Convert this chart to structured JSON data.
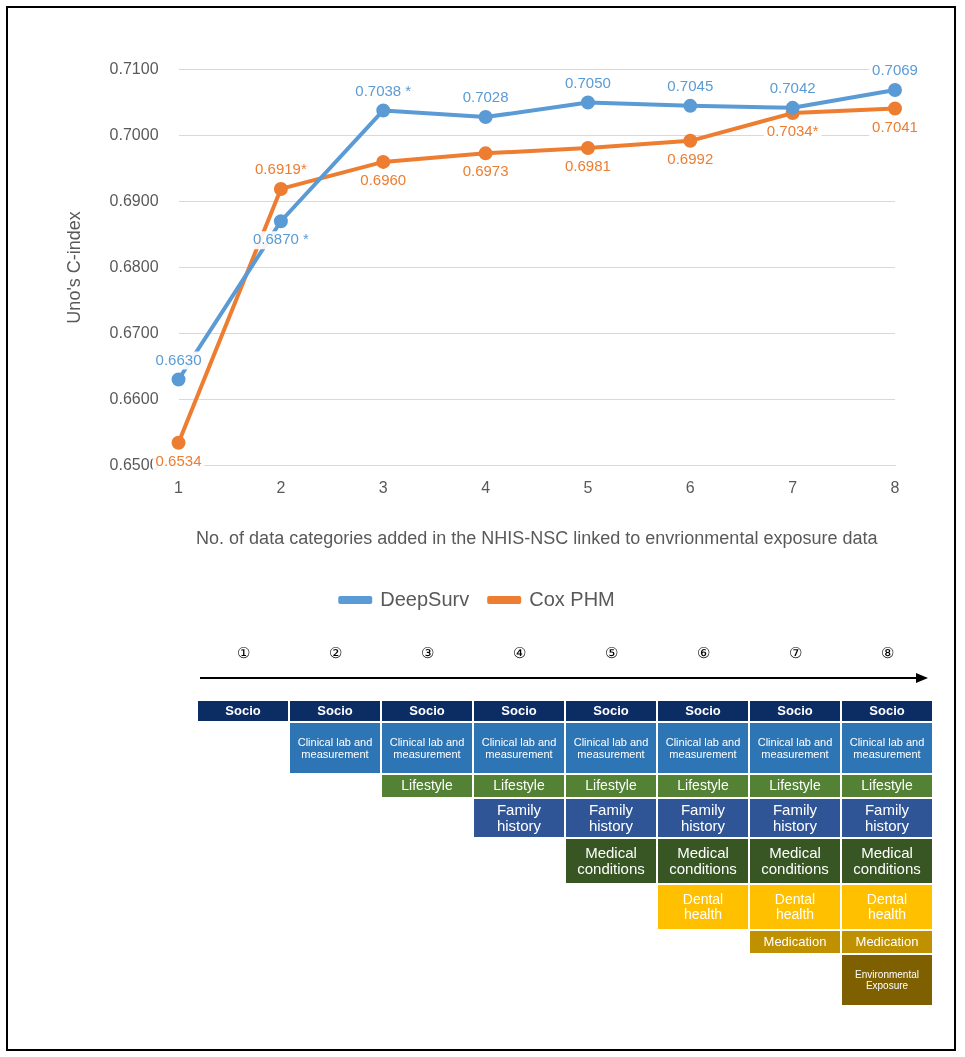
{
  "chart_data": [
    {
      "type": "line",
      "ylabel": "Uno's C-index",
      "xlabel": "No. of data categories added in the NHIS-NSC linked to envrionmental exposure data",
      "categories": [
        "1",
        "2",
        "3",
        "4",
        "5",
        "6",
        "7",
        "8"
      ],
      "series": [
        {
          "name": "DeepSurv",
          "color": "#5b9bd5",
          "values": [
            0.663,
            0.687,
            0.7038,
            0.7028,
            0.705,
            0.7045,
            0.7042,
            0.7069
          ],
          "value_labels": [
            "0.6630",
            "0.6870 *",
            "0.7038 *",
            "0.7028",
            "0.7050",
            "0.7045",
            "0.7042",
            "0.7069"
          ]
        },
        {
          "name": "Cox PHM",
          "color": "#ed7d31",
          "values": [
            0.6534,
            0.6919,
            0.696,
            0.6973,
            0.6981,
            0.6992,
            0.7034,
            0.7041
          ],
          "value_labels": [
            "0.6534",
            "0.6919*",
            "0.6960",
            "0.6973",
            "0.6981",
            "0.6992",
            "0.7034*",
            "0.7041"
          ]
        }
      ],
      "ylim": [
        0.65,
        0.71
      ],
      "yticks": [
        {
          "value": 0.65,
          "label": "0.6500"
        },
        {
          "value": 0.66,
          "label": "0.6600"
        },
        {
          "value": 0.67,
          "label": "0.6700"
        },
        {
          "value": 0.68,
          "label": "0.6800"
        },
        {
          "value": 0.69,
          "label": "0.6900"
        },
        {
          "value": 0.7,
          "label": "0.7000"
        },
        {
          "value": 0.71,
          "label": "0.7100"
        }
      ],
      "grid": "y",
      "legend": "bottom",
      "marker": "circle",
      "line_style": "solid"
    },
    {
      "type": "other",
      "categories": [
        "①",
        "②",
        "③",
        "④",
        "⑤",
        "⑥",
        "⑦",
        "⑧"
      ],
      "annotations": [
        "Socio",
        "Clinical lab and measurement",
        "Lifestyle",
        "Family history",
        "Medical conditions",
        "Dental health",
        "Medication",
        "Environmental Exposure"
      ],
      "colors": [
        "#0c2c64",
        "#2e75b6",
        "#548235",
        "#2f5597",
        "#375623",
        "#ffc000",
        "#bf9000",
        "#7f6000"
      ]
    }
  ]
}
